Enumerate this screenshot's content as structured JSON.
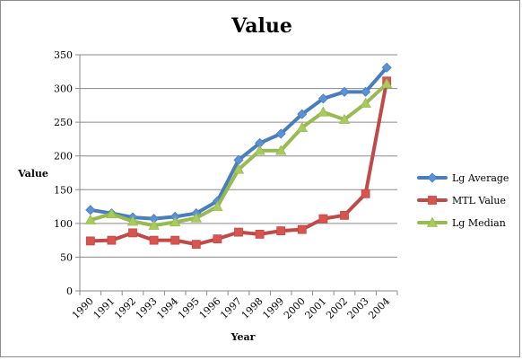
{
  "chart_data": {
    "type": "line",
    "title": "Value",
    "xlabel": "Year",
    "ylabel": "Value",
    "ylim": [
      0,
      350
    ],
    "yticks": [
      0,
      50,
      100,
      150,
      200,
      250,
      300,
      350
    ],
    "grid": "horizontal major gridlines",
    "legend_position": "right",
    "categories": [
      "1990",
      "1991",
      "1992",
      "1993",
      "1994",
      "1995",
      "1996",
      "1997",
      "1998",
      "1999",
      "2000",
      "2001",
      "2002",
      "2003",
      "2004"
    ],
    "series": [
      {
        "name": "Lg Average",
        "color": "#4a7ebb",
        "marker": "diamond",
        "marker_color": "#5b92d6",
        "values": [
          120,
          115,
          109,
          107,
          110,
          115,
          133,
          194,
          219,
          233,
          262,
          285,
          295,
          295,
          331
        ]
      },
      {
        "name": "MTL Value",
        "color": "#be4b48",
        "marker": "square",
        "marker_color": "#d9534f",
        "values": [
          74,
          75,
          86,
          75,
          75,
          69,
          77,
          87,
          84,
          89,
          91,
          107,
          112,
          144,
          311
        ]
      },
      {
        "name": "Lg Median",
        "color": "#98b954",
        "marker": "triangle",
        "marker_color": "#a8cc5c",
        "values": [
          105,
          114,
          103,
          97,
          102,
          108,
          125,
          180,
          208,
          208,
          242,
          265,
          254,
          278,
          307
        ]
      }
    ]
  }
}
